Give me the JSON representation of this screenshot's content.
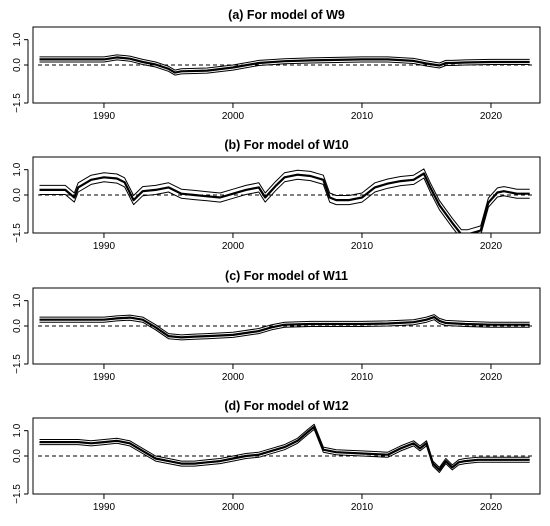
{
  "chart_data": [
    {
      "type": "line",
      "title": "(a) For model of W9",
      "xlim": [
        1984.5,
        2023.8
      ],
      "ylim": [
        -1.5,
        1.5
      ],
      "xticks": [
        1990,
        2000,
        2010,
        2020
      ],
      "yticks": [
        -1.5,
        0.0,
        1.0
      ],
      "ytick_labels": [
        "−1.5",
        "0.0",
        "1.0"
      ],
      "reference_y": 0,
      "series": [
        {
          "x": [
            1985,
            1990,
            1991,
            1992,
            1993,
            1994,
            1995,
            1995.5,
            1996,
            1998,
            2000,
            2002,
            2004,
            2006,
            2008,
            2010,
            2012,
            2014,
            2015,
            2016,
            2016.5,
            2017,
            2018,
            2020,
            2023
          ],
          "y": [
            0.22,
            0.22,
            0.3,
            0.25,
            0.12,
            0.02,
            -0.15,
            -0.3,
            -0.25,
            -0.22,
            -0.1,
            0.08,
            0.15,
            0.18,
            0.2,
            0.22,
            0.22,
            0.16,
            0.06,
            -0.02,
            0.08,
            0.08,
            0.1,
            0.12,
            0.12
          ],
          "band": 0.1
        }
      ]
    },
    {
      "type": "line",
      "title": "(b) For model of W10",
      "xlim": [
        1984.5,
        2023.8
      ],
      "ylim": [
        -1.5,
        1.5
      ],
      "xticks": [
        1990,
        2000,
        2010,
        2020
      ],
      "yticks": [
        -1.5,
        0.0,
        1.0
      ],
      "ytick_labels": [
        "−1.5",
        "0.0",
        "1.0"
      ],
      "reference_y": 0,
      "series": [
        {
          "x": [
            1985,
            1987,
            1987.7,
            1988,
            1989,
            1990,
            1991,
            1991.6,
            1992.3,
            1993,
            1994,
            1995,
            1996,
            1997,
            1998,
            1999,
            2000,
            2001,
            2002,
            2002.5,
            2003.3,
            2004,
            2005,
            2006,
            2007,
            2007.5,
            2008,
            2009,
            2010,
            2011,
            2012,
            2013,
            2014,
            2014.8,
            2015.3,
            2016,
            2017,
            2017.7,
            2018.2,
            2019.2,
            2019.8,
            2020.5,
            2021,
            2022,
            2023
          ],
          "y": [
            0.2,
            0.2,
            -0.1,
            0.3,
            0.6,
            0.7,
            0.65,
            0.5,
            -0.2,
            0.15,
            0.2,
            0.3,
            0.05,
            0.0,
            -0.05,
            -0.1,
            0.05,
            0.2,
            0.3,
            -0.1,
            0.35,
            0.7,
            0.8,
            0.75,
            0.6,
            -0.1,
            -0.2,
            -0.2,
            -0.1,
            0.3,
            0.45,
            0.55,
            0.6,
            0.85,
            0.3,
            -0.4,
            -1.1,
            -1.55,
            -1.55,
            -1.4,
            -0.3,
            0.1,
            0.15,
            0.05,
            0.05
          ],
          "band": 0.18
        }
      ]
    },
    {
      "type": "line",
      "title": "(c) For model of W11",
      "xlim": [
        1984.5,
        2023.8
      ],
      "ylim": [
        -1.5,
        1.5
      ],
      "xticks": [
        1990,
        2000,
        2010,
        2020
      ],
      "yticks": [
        -1.5,
        0.0,
        1.0
      ],
      "ytick_labels": [
        "−1.5",
        "0.0",
        "1.0"
      ],
      "reference_y": 0,
      "series": [
        {
          "x": [
            1985,
            1990,
            1991,
            1992,
            1993,
            1994,
            1995,
            1996,
            1997,
            1998,
            2000,
            2002,
            2003,
            2004,
            2006,
            2008,
            2010,
            2012,
            2014,
            2015,
            2015.6,
            2016,
            2016.5,
            2018,
            2020,
            2023
          ],
          "y": [
            0.25,
            0.25,
            0.3,
            0.33,
            0.25,
            -0.05,
            -0.4,
            -0.45,
            -0.42,
            -0.4,
            -0.35,
            -0.2,
            -0.05,
            0.05,
            0.08,
            0.08,
            0.08,
            0.1,
            0.15,
            0.25,
            0.35,
            0.2,
            0.12,
            0.08,
            0.05,
            0.05
          ],
          "band": 0.1
        }
      ]
    },
    {
      "type": "line",
      "title": "(d) For model of W12",
      "xlim": [
        1984.5,
        2023.8
      ],
      "ylim": [
        -1.5,
        1.5
      ],
      "xticks": [
        1990,
        2000,
        2010,
        2020
      ],
      "yticks": [
        -1.5,
        0.0,
        1.0
      ],
      "ytick_labels": [
        "−1.5",
        "0.0",
        "1.0"
      ],
      "reference_y": 0,
      "series": [
        {
          "x": [
            1985,
            1988,
            1989,
            1990,
            1991,
            1992,
            1993,
            1994,
            1995,
            1996,
            1997,
            1998,
            1999,
            2000,
            2001,
            2002,
            2004,
            2005,
            2005.8,
            2006.3,
            2007,
            2008,
            2010,
            2012,
            2013,
            2014,
            2014.5,
            2015,
            2015.5,
            2016,
            2016.5,
            2017,
            2017.5,
            2018,
            2019,
            2020,
            2023
          ],
          "y": [
            0.55,
            0.55,
            0.5,
            0.55,
            0.6,
            0.5,
            0.2,
            -0.1,
            -0.2,
            -0.3,
            -0.3,
            -0.25,
            -0.2,
            -0.1,
            0.0,
            0.05,
            0.35,
            0.6,
            0.95,
            1.15,
            0.25,
            0.15,
            0.1,
            0.05,
            0.3,
            0.5,
            0.3,
            0.5,
            -0.3,
            -0.55,
            -0.2,
            -0.45,
            -0.25,
            -0.2,
            -0.15,
            -0.15,
            -0.15
          ],
          "band": 0.1
        }
      ]
    }
  ]
}
